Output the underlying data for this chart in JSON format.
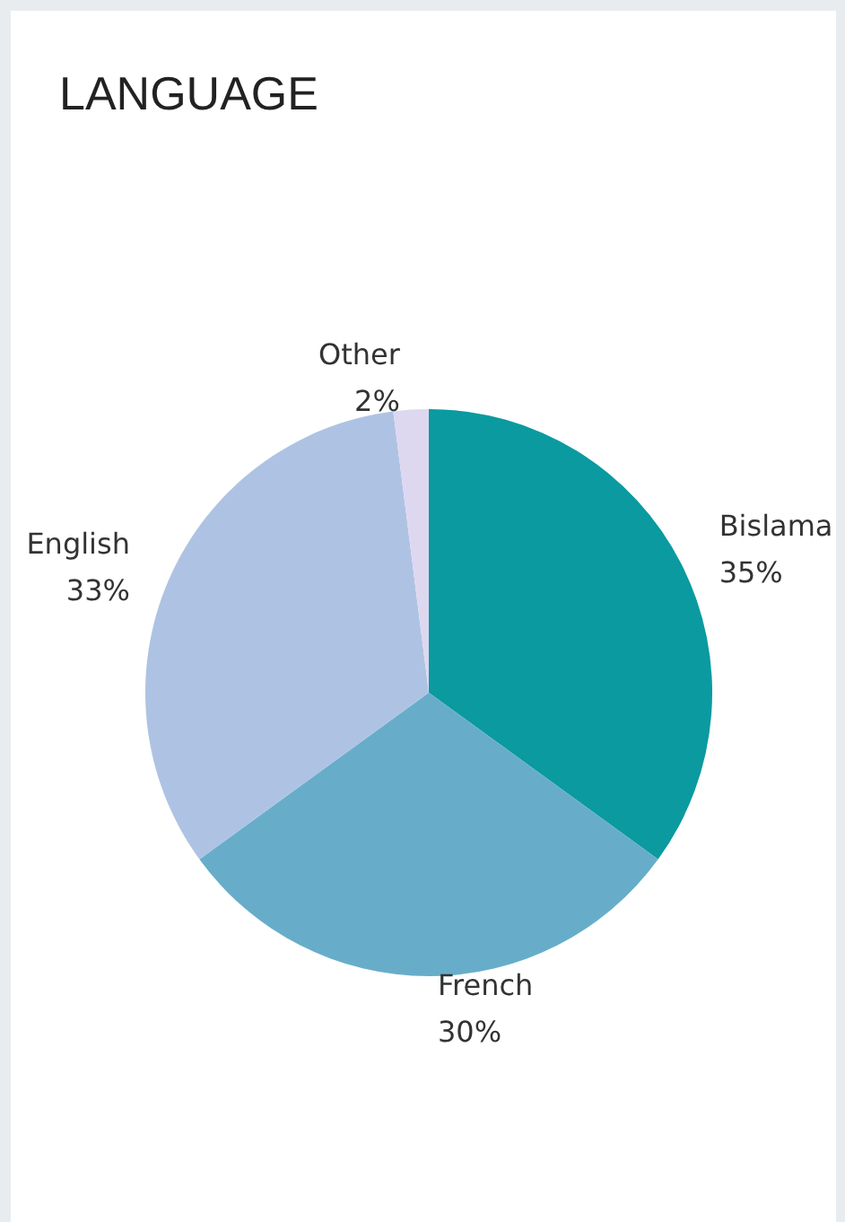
{
  "chart_data": {
    "type": "pie",
    "title": "LANGUAGE",
    "categories": [
      "Bislama",
      "French",
      "English",
      "Other"
    ],
    "values": [
      35,
      30,
      33,
      2
    ],
    "colors": [
      "#0a9aa0",
      "#67adc9",
      "#aec3e3",
      "#ddd8f0"
    ],
    "value_labels": [
      "35%",
      "30%",
      "33%",
      "2%"
    ]
  }
}
